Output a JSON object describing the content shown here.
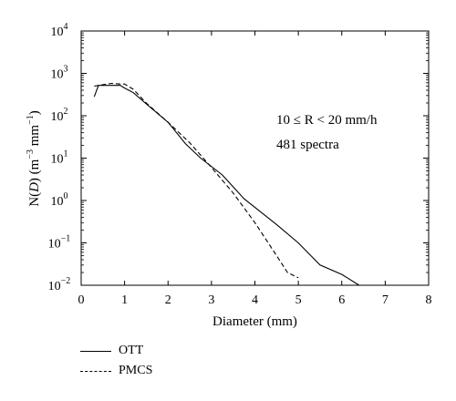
{
  "chart_data": {
    "type": "line",
    "xlabel": "Diameter (mm)",
    "ylabel_parts": {
      "prefix": "N(",
      "var": "D",
      "suffix": ") (m",
      "exp1": "−3",
      "mid": " mm",
      "exp2": "−1",
      "end": ")"
    },
    "xlim": [
      0,
      8
    ],
    "ylim": [
      0.01,
      10000
    ],
    "yscale": "log",
    "x_ticks": [
      "0",
      "1",
      "2",
      "3",
      "4",
      "5",
      "6",
      "7",
      "8"
    ],
    "y_ticks": [
      {
        "base": "10",
        "exp": "−2"
      },
      {
        "base": "10",
        "exp": "−1"
      },
      {
        "base": "10",
        "exp": "0"
      },
      {
        "base": "10",
        "exp": "1"
      },
      {
        "base": "10",
        "exp": "2"
      },
      {
        "base": "10",
        "exp": "3"
      },
      {
        "base": "10",
        "exp": "4"
      }
    ],
    "annotations": [
      "10 ≤ R < 20 mm/h",
      "481 spectra"
    ],
    "series": [
      {
        "name": "OTT",
        "style": "solid",
        "x": [
          0.3,
          0.4,
          0.6,
          0.9,
          1.0,
          1.2,
          1.5,
          2.0,
          2.4,
          2.75,
          3.25,
          3.75,
          4.5,
          5.0,
          5.5,
          6.0,
          6.4
        ],
        "y": [
          280,
          520,
          520,
          520,
          450,
          350,
          190,
          70,
          22,
          10,
          4,
          1.1,
          0.27,
          0.1,
          0.03,
          0.018,
          0.01
        ]
      },
      {
        "name": "PMCS",
        "style": "dashed",
        "x": [
          0.3,
          0.5,
          0.7,
          0.9,
          1.0,
          1.2,
          1.5,
          2.0,
          2.5,
          3.0,
          3.5,
          4.0,
          4.5,
          4.75,
          5.0
        ],
        "y": [
          500,
          540,
          580,
          560,
          560,
          420,
          200,
          70,
          23,
          6,
          1.5,
          0.3,
          0.05,
          0.02,
          0.015
        ]
      }
    ]
  }
}
